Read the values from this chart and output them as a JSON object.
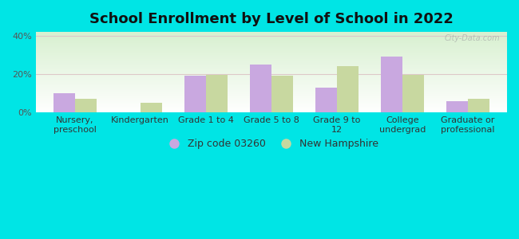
{
  "title": "School Enrollment by Level of School in 2022",
  "categories": [
    "Nursery,\npreschool",
    "Kindergarten",
    "Grade 1 to 4",
    "Grade 5 to 8",
    "Grade 9 to\n12",
    "College\nundergrad",
    "Graduate or\nprofessional"
  ],
  "zip_values": [
    10,
    0,
    19,
    25,
    13,
    29,
    6
  ],
  "nh_values": [
    7,
    5,
    19.5,
    19,
    24,
    19.5,
    7
  ],
  "zip_color": "#c9a8e0",
  "nh_color": "#c8d8a0",
  "background_color": "#00e5e5",
  "ylim": [
    0,
    42
  ],
  "yticks": [
    0,
    20,
    40
  ],
  "ytick_labels": [
    "0%",
    "20%",
    "40%"
  ],
  "grid_color": "#ddc8c8",
  "legend_zip_label": "Zip code 03260",
  "legend_nh_label": "New Hampshire",
  "watermark": "City-Data.com",
  "title_fontsize": 13,
  "tick_fontsize": 8,
  "bar_width": 0.33
}
